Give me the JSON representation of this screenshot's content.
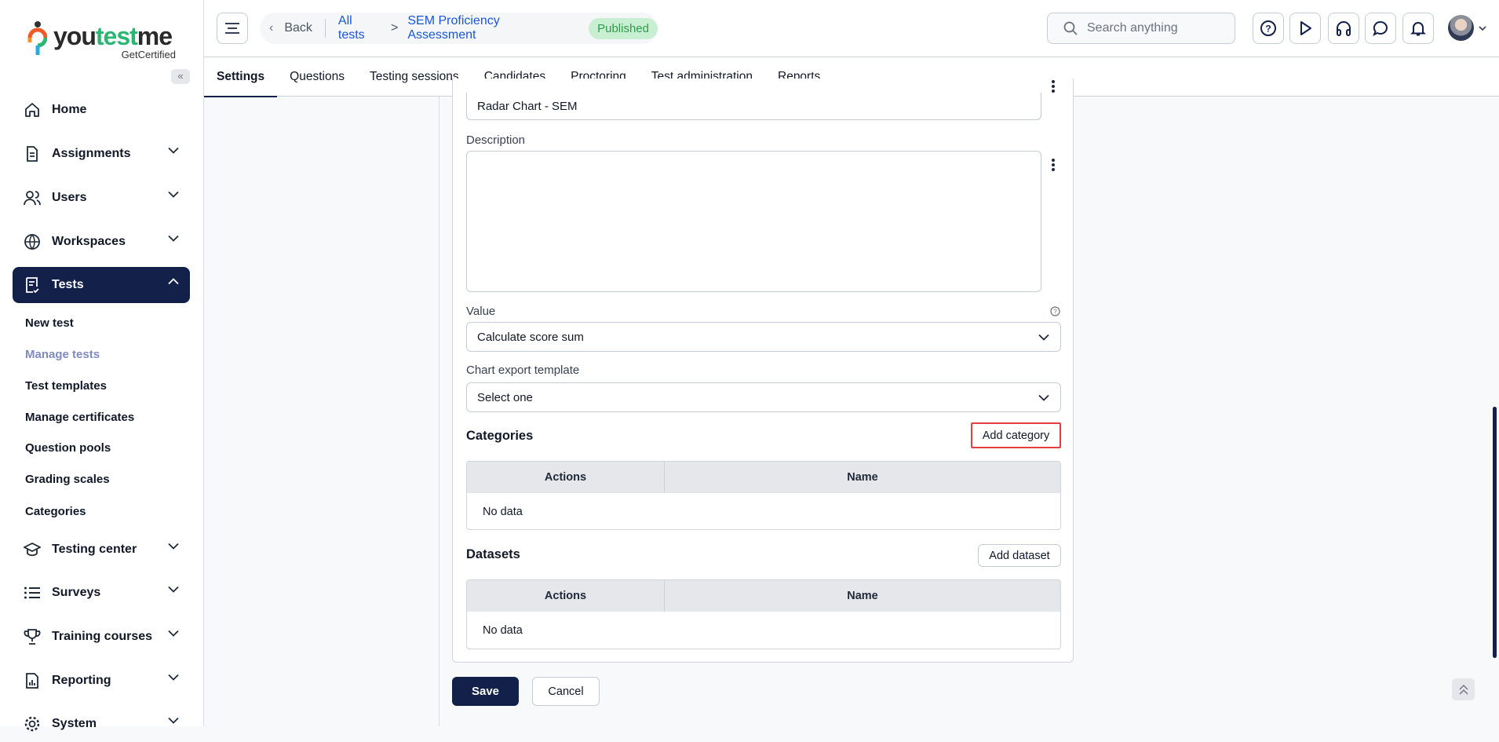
{
  "brand": {
    "name_a": "you",
    "name_b": "test",
    "name_c": "me",
    "tagline": "GetCertified"
  },
  "sidebar": {
    "collapse_label": "«",
    "items": [
      {
        "label": "Home",
        "icon": "home-icon"
      },
      {
        "label": "Assignments",
        "icon": "document-icon"
      },
      {
        "label": "Users",
        "icon": "users-icon"
      },
      {
        "label": "Workspaces",
        "icon": "globe-icon"
      },
      {
        "label": "Tests",
        "icon": "test-icon",
        "active": true
      },
      {
        "label": "Testing center",
        "icon": "graduation-cap-icon"
      },
      {
        "label": "Surveys",
        "icon": "list-icon"
      },
      {
        "label": "Training courses",
        "icon": "trophy-icon"
      },
      {
        "label": "Reporting",
        "icon": "report-icon"
      },
      {
        "label": "System",
        "icon": "gear-icon"
      }
    ],
    "tests_sub": [
      "New test",
      "Manage tests",
      "Test templates",
      "Manage certificates",
      "Question pools",
      "Grading scales",
      "Categories"
    ],
    "selected_sub": "Manage tests"
  },
  "header": {
    "back": "Back",
    "crumb1": "All tests",
    "crumb_sep": ">",
    "crumb2": "SEM Proficiency Assessment",
    "status": "Published",
    "search_placeholder": "Search anything"
  },
  "tabs": [
    "Settings",
    "Questions",
    "Testing sessions",
    "Candidates",
    "Proctoring",
    "Test administration",
    "Reports"
  ],
  "form": {
    "name_value": "Radar Chart - SEM",
    "description_label": "Description",
    "description_value": "",
    "value_label": "Value",
    "value_selected": "Calculate score sum",
    "export_label": "Chart export template",
    "export_selected": "Select one",
    "categories_title": "Categories",
    "add_category": "Add category",
    "datasets_title": "Datasets",
    "add_dataset": "Add dataset",
    "col_actions": "Actions",
    "col_name": "Name",
    "no_data": "No data",
    "save": "Save",
    "cancel": "Cancel"
  },
  "colors": {
    "primary": "#12204a",
    "link": "#1a56db",
    "published_bg": "#c9efd2",
    "highlight": "#e53e3e"
  }
}
